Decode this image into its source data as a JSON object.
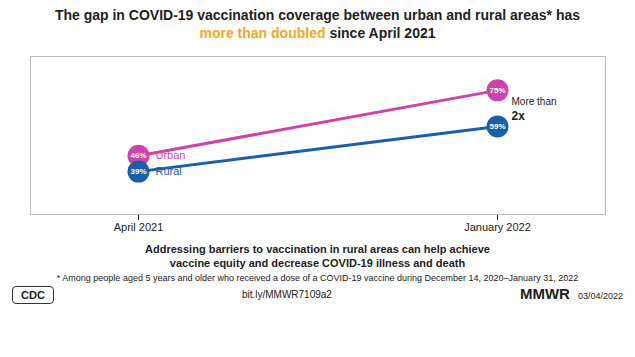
{
  "chart_data": {
    "type": "line",
    "title": [
      {
        "text": "The gap in COVID-19 vaccination coverage between urban and rural areas* has "
      },
      {
        "text": "more than doubled",
        "color": "#f5a623"
      },
      {
        "text": " since April 2021"
      }
    ],
    "categories": [
      "April 2021",
      "January 2022"
    ],
    "series": [
      {
        "name": "Urban",
        "color": "#cc44aa",
        "values": [
          46,
          75
        ],
        "value_labels": [
          "46%",
          "75%"
        ]
      },
      {
        "name": "Rural",
        "color": "#1a5fa8",
        "values": [
          39,
          59
        ],
        "value_labels": [
          "39%",
          "59%"
        ]
      }
    ],
    "ylim": [
      20,
      90
    ],
    "tick_labels": "x",
    "grid": false,
    "data_labels": true,
    "marker": "circle",
    "annotations": [
      "More than",
      "2x"
    ],
    "footer": {
      "lines": [
        "Addressing barriers to vaccination in rural areas can help achieve",
        "vaccine equity and decrease COVID-19 illness and death"
      ],
      "footnote": "* Among people aged 5 years and older who received a dose of a COVID-19 vaccine during December 14, 2020–January 31, 2022",
      "url": "bit.ly/MMWR7109a2",
      "logo": "CDC",
      "label": "MMWR",
      "date": "03/04/2022"
    }
  }
}
